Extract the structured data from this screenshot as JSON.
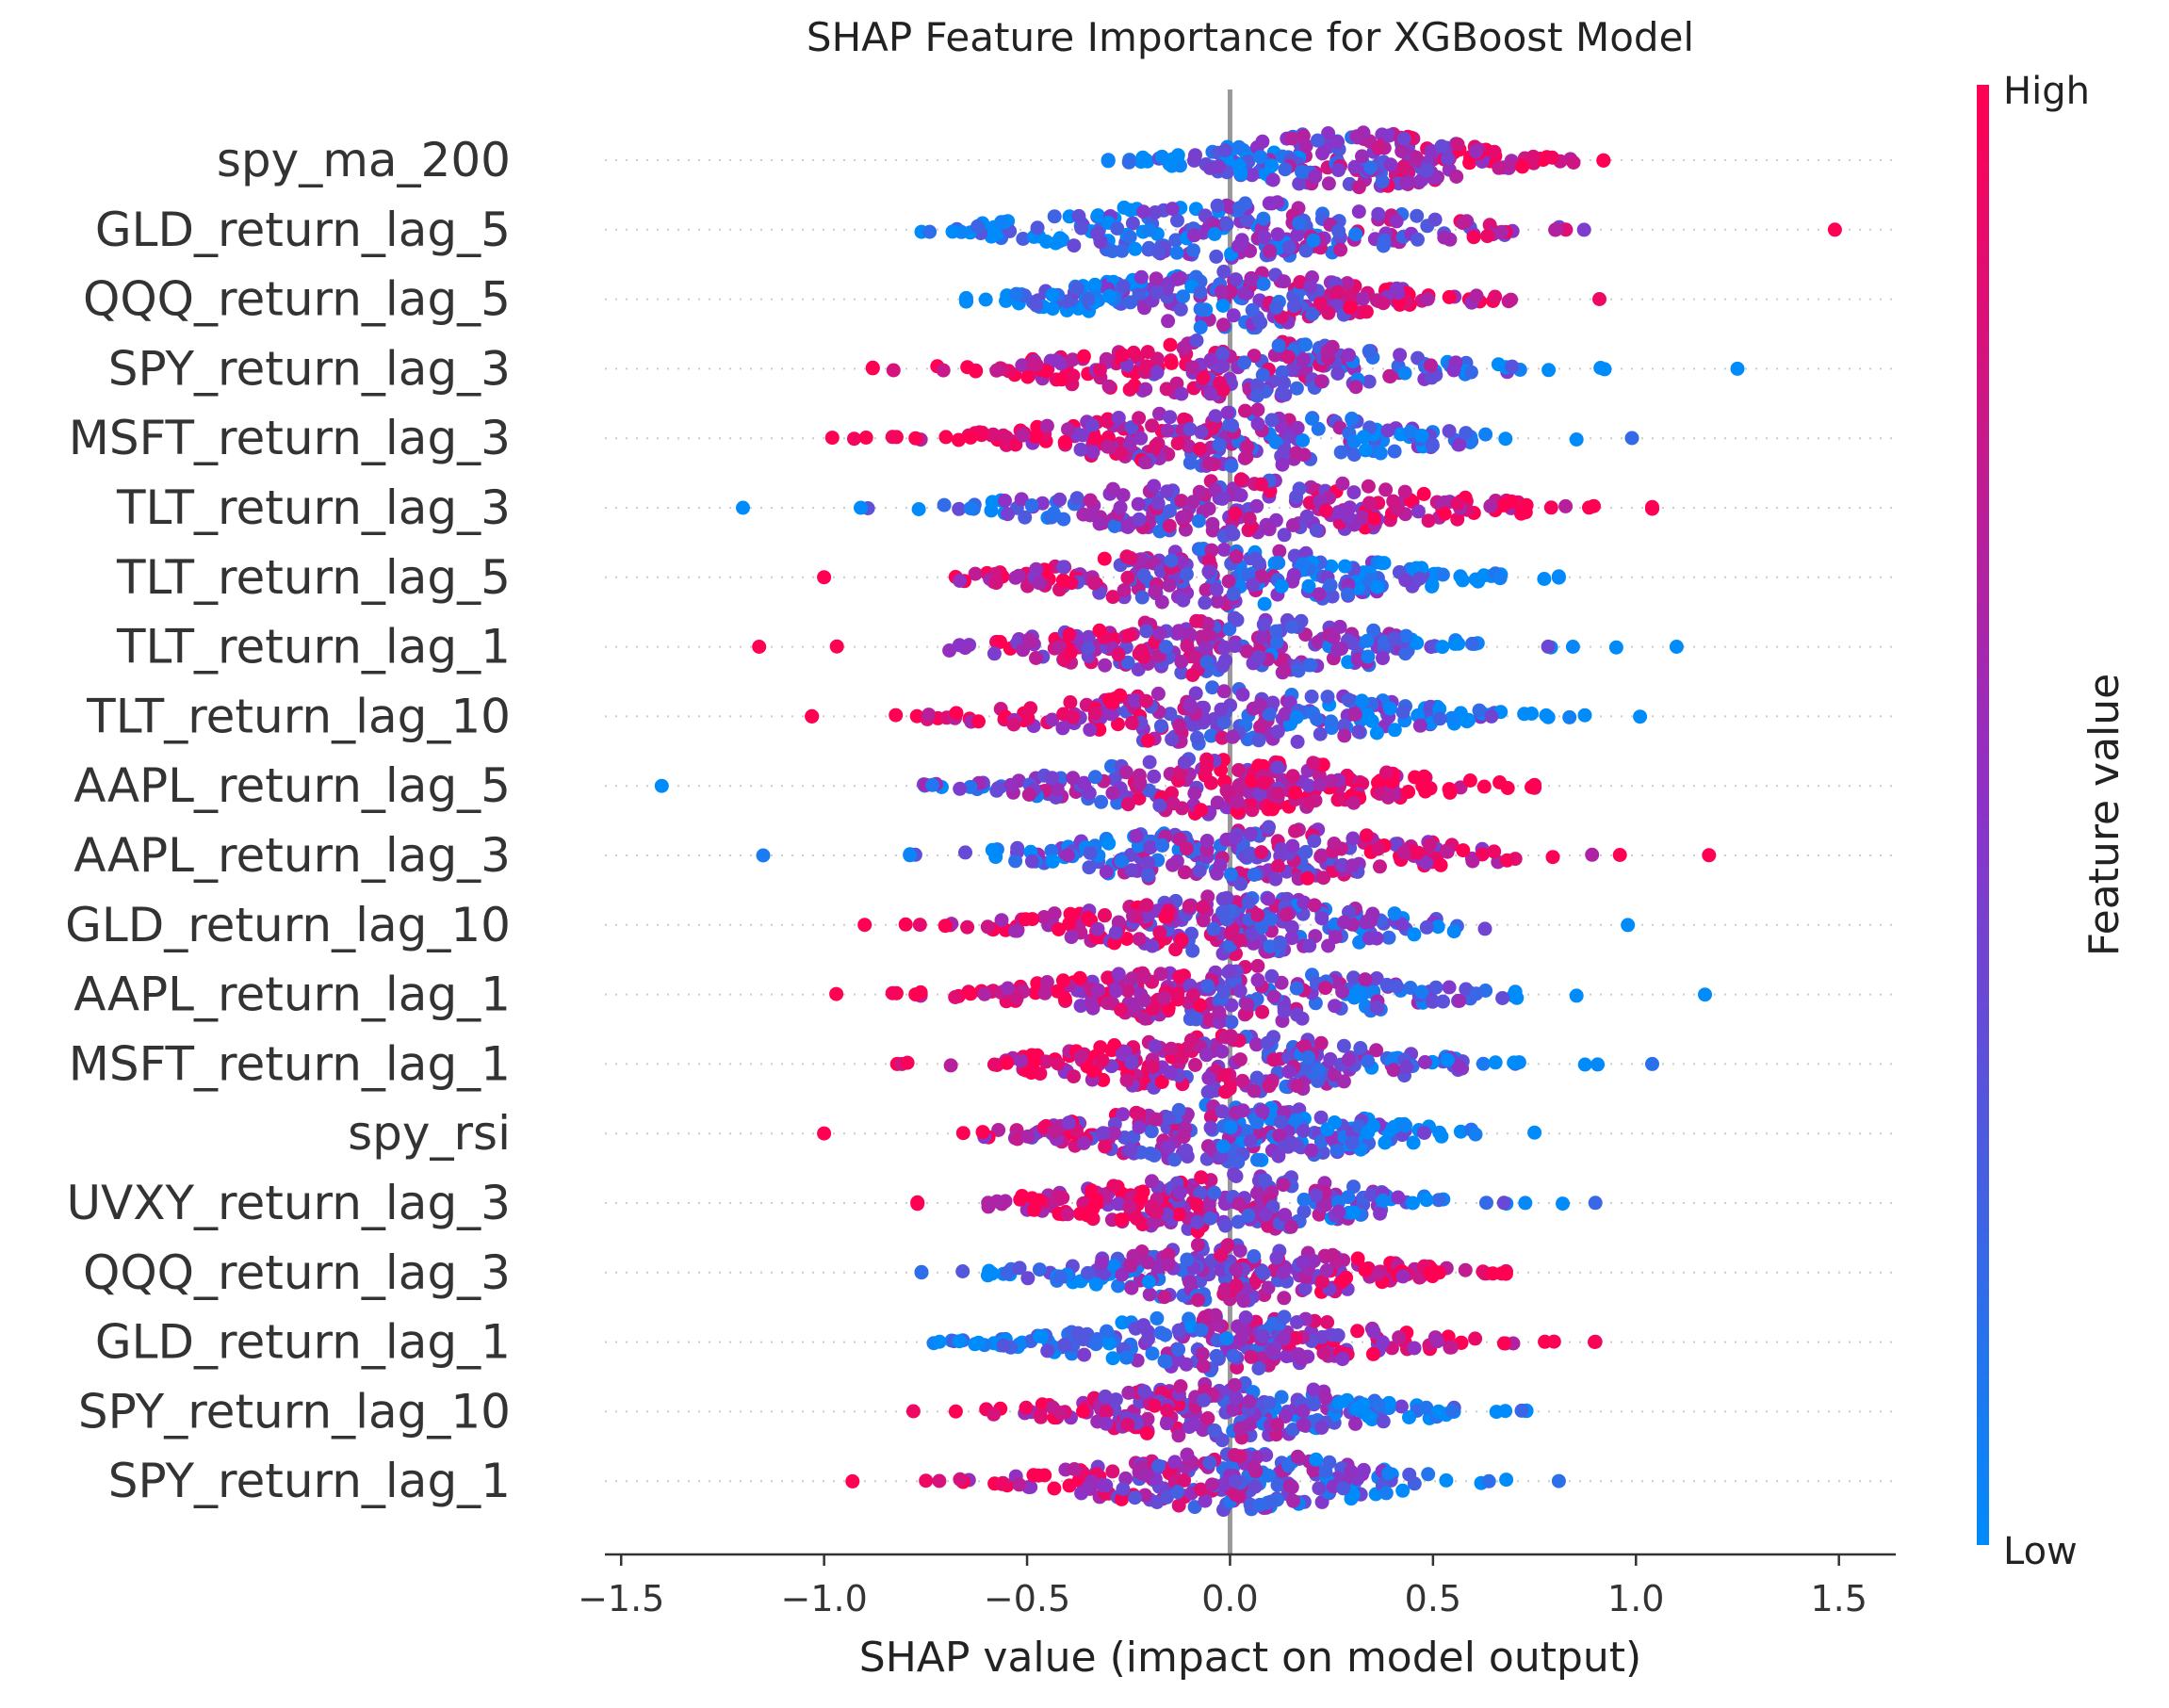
{
  "chart_data": {
    "type": "scatter",
    "subtype": "shap-beeswarm",
    "title": "SHAP Feature Importance for XGBoost Model",
    "xlabel": "SHAP value (impact on model output)",
    "xlim": [
      -1.54,
      1.64
    ],
    "xticks": [
      -1.5,
      -1.0,
      -0.5,
      0.0,
      0.5,
      1.0,
      1.5
    ],
    "xtick_labels": [
      "−1.5",
      "−1.0",
      "−0.5",
      "0.0",
      "0.5",
      "1.0",
      "1.5"
    ],
    "grid": false,
    "colorbar": {
      "title": "Feature value",
      "high_label": "High",
      "low_label": "Low",
      "high_color": "#ff0052",
      "low_color": "#008bfb"
    },
    "features": [
      {
        "name": "spy_ma_200",
        "min": -0.3,
        "max": 0.92,
        "center": 0.3,
        "spread": 0.25,
        "high_side": "right"
      },
      {
        "name": "GLD_return_lag_5",
        "min": -0.76,
        "max": 1.49,
        "center": 0.0,
        "spread": 0.38,
        "high_side": "right"
      },
      {
        "name": "QQQ_return_lag_5",
        "min": -0.65,
        "max": 0.91,
        "center": 0.0,
        "spread": 0.3,
        "high_side": "right"
      },
      {
        "name": "SPY_return_lag_3",
        "min": -0.88,
        "max": 1.25,
        "center": 0.0,
        "spread": 0.35,
        "high_side": "left"
      },
      {
        "name": "MSFT_return_lag_3",
        "min": -0.98,
        "max": 0.99,
        "center": 0.0,
        "spread": 0.35,
        "high_side": "left"
      },
      {
        "name": "TLT_return_lag_3",
        "min": -1.2,
        "max": 1.04,
        "center": 0.05,
        "spread": 0.38,
        "high_side": "right"
      },
      {
        "name": "TLT_return_lag_5",
        "min": -1.0,
        "max": 0.81,
        "center": 0.0,
        "spread": 0.33,
        "high_side": "left"
      },
      {
        "name": "TLT_return_lag_1",
        "min": -1.16,
        "max": 1.1,
        "center": 0.0,
        "spread": 0.36,
        "high_side": "left"
      },
      {
        "name": "TLT_return_lag_10",
        "min": -1.03,
        "max": 1.01,
        "center": 0.0,
        "spread": 0.35,
        "high_side": "left"
      },
      {
        "name": "AAPL_return_lag_5",
        "min": -1.4,
        "max": 0.75,
        "center": 0.0,
        "spread": 0.33,
        "high_side": "right"
      },
      {
        "name": "AAPL_return_lag_3",
        "min": -1.15,
        "max": 1.18,
        "center": 0.05,
        "spread": 0.36,
        "high_side": "right"
      },
      {
        "name": "GLD_return_lag_10",
        "min": -0.9,
        "max": 0.98,
        "center": 0.0,
        "spread": 0.32,
        "high_side": "left"
      },
      {
        "name": "AAPL_return_lag_1",
        "min": -0.97,
        "max": 1.17,
        "center": 0.0,
        "spread": 0.35,
        "high_side": "left"
      },
      {
        "name": "MSFT_return_lag_1",
        "min": -0.82,
        "max": 1.04,
        "center": 0.0,
        "spread": 0.32,
        "high_side": "left"
      },
      {
        "name": "spy_rsi",
        "min": -1.0,
        "max": 0.75,
        "center": 0.0,
        "spread": 0.3,
        "high_side": "left"
      },
      {
        "name": "UVXY_return_lag_3",
        "min": -0.77,
        "max": 0.9,
        "center": 0.0,
        "spread": 0.31,
        "high_side": "left"
      },
      {
        "name": "QQQ_return_lag_3",
        "min": -0.76,
        "max": 0.68,
        "center": 0.0,
        "spread": 0.28,
        "high_side": "right"
      },
      {
        "name": "GLD_return_lag_1",
        "min": -0.73,
        "max": 0.9,
        "center": 0.0,
        "spread": 0.3,
        "high_side": "right"
      },
      {
        "name": "SPY_return_lag_10",
        "min": -0.78,
        "max": 0.73,
        "center": 0.0,
        "spread": 0.29,
        "high_side": "left"
      },
      {
        "name": "SPY_return_lag_1",
        "min": -0.93,
        "max": 0.81,
        "center": 0.0,
        "spread": 0.3,
        "high_side": "left"
      }
    ]
  }
}
